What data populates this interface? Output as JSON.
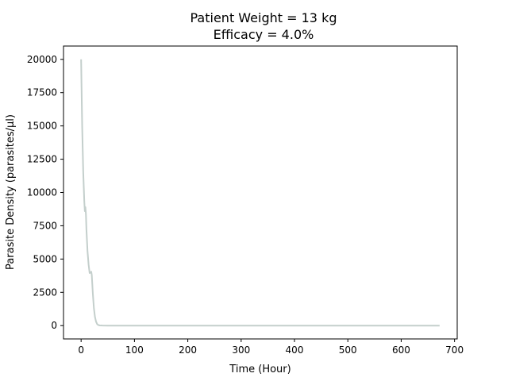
{
  "chart_data": {
    "type": "line",
    "title_lines": [
      "Patient Weight = 13 kg",
      "Efficacy = 4.0%"
    ],
    "xlabel": "Time (Hour)",
    "ylabel": "Parasite Density (parasites/μl)",
    "xlim": [
      -33,
      705
    ],
    "ylim": [
      -1000,
      21000
    ],
    "x_ticks": [
      0,
      100,
      200,
      300,
      400,
      500,
      600,
      700
    ],
    "y_ticks": [
      0,
      2500,
      5000,
      7500,
      10000,
      12500,
      15000,
      17500,
      20000
    ],
    "grid": false,
    "series": [
      {
        "color": "#c4cfcc",
        "x": [
          0,
          2,
          4,
          6,
          7,
          8,
          9,
          10,
          12,
          14,
          16,
          18,
          19,
          20,
          22,
          24,
          26,
          28,
          30,
          32,
          35,
          40,
          50,
          100,
          200,
          300,
          400,
          500,
          600,
          672
        ],
        "y": [
          20000,
          15000,
          11500,
          9300,
          8600,
          8900,
          8400,
          7200,
          5600,
          4600,
          3950,
          4000,
          4050,
          3800,
          2400,
          1300,
          650,
          300,
          120,
          50,
          15,
          5,
          0,
          0,
          0,
          0,
          0,
          0,
          0,
          0
        ]
      }
    ]
  }
}
